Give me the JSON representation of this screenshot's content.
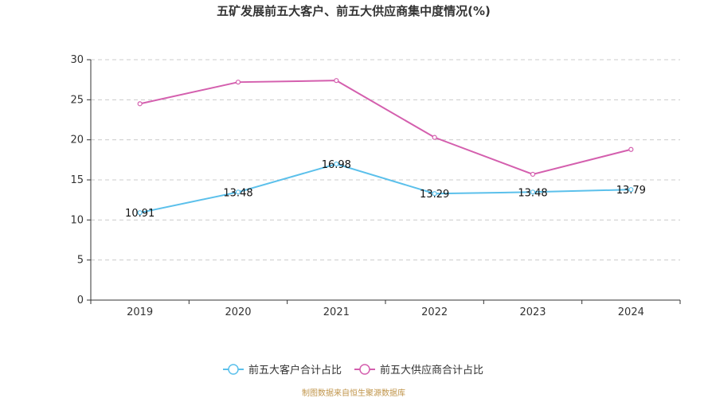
{
  "chart_data": {
    "type": "line",
    "title": "五矿发展前五大客户、前五大供应商集中度情况(%)",
    "categories": [
      "2019",
      "2020",
      "2021",
      "2022",
      "2023",
      "2024"
    ],
    "ylim": [
      0,
      30
    ],
    "yticks": [
      0,
      5,
      10,
      15,
      20,
      25,
      30
    ],
    "grid": true,
    "legend_position": "bottom",
    "series": [
      {
        "name": "前五大客户合计占比",
        "color": "#5bc0eb",
        "values": [
          10.91,
          13.48,
          16.98,
          13.29,
          13.48,
          13.79
        ],
        "labels": [
          "10.91",
          "13.48",
          "16.98",
          "13.29",
          "13.48",
          "13.79"
        ]
      },
      {
        "name": "前五大供应商合计占比",
        "color": "#d45fae",
        "values": [
          24.5,
          27.2,
          27.4,
          20.3,
          15.7,
          18.8
        ]
      }
    ]
  },
  "source": "制图数据来自恒生聚源数据库"
}
